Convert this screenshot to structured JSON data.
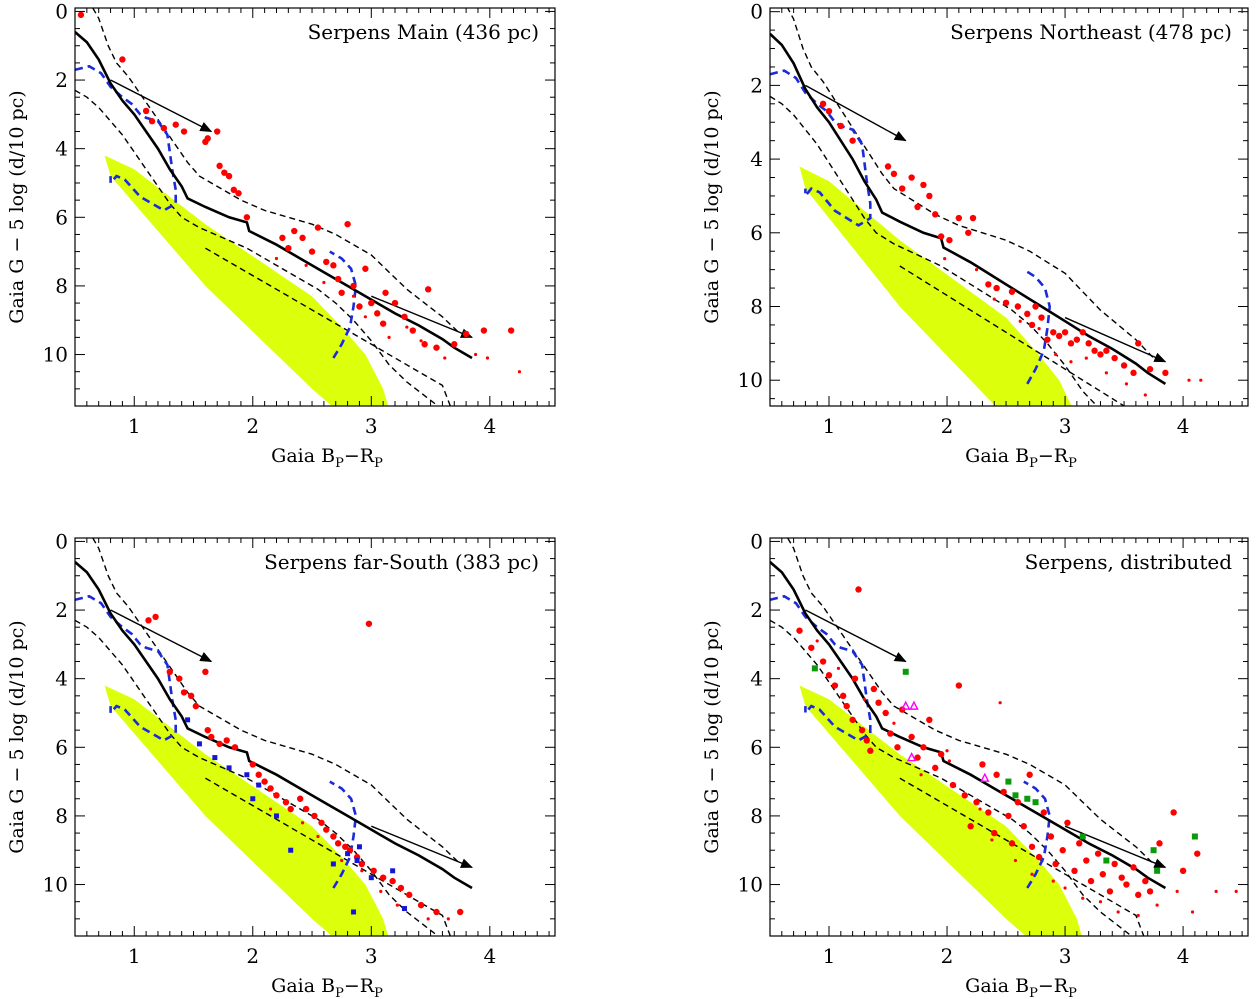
{
  "figure": {
    "xlabel": "Gaia B",
    "xlabel_sub1": "P",
    "xlabel_mid": "−R",
    "xlabel_sub2": "P",
    "ylabel": "Gaia G − 5 log (d/10 pc)",
    "colors": {
      "members": "#ff0000",
      "blue_squares": "#1515d8",
      "green_squares": "#0a9a0a",
      "magenta_triangles": "#ff00ff",
      "main_sequence_band": "#dcff0c",
      "isochrone_blue": "#1b2bd9",
      "isochrone_black": "#000000"
    }
  },
  "chart_data": [
    {
      "type": "scatter",
      "title": "Serpens Main (436 pc)",
      "xlim": [
        0.5,
        4.55
      ],
      "ylim": [
        11.5,
        -0.1
      ],
      "xticks": [
        "1",
        "2",
        "3",
        "4"
      ],
      "yticks": [
        "0",
        "2",
        "4",
        "6",
        "8",
        "10"
      ],
      "members_large": [
        [
          0.55,
          0.1
        ],
        [
          0.9,
          1.4
        ],
        [
          1.1,
          2.9
        ],
        [
          1.15,
          3.2
        ],
        [
          1.25,
          3.4
        ],
        [
          1.35,
          3.3
        ],
        [
          1.42,
          3.5
        ],
        [
          1.6,
          3.8
        ],
        [
          1.62,
          3.7
        ],
        [
          1.7,
          3.5
        ],
        [
          1.72,
          4.5
        ],
        [
          1.76,
          4.7
        ],
        [
          1.8,
          4.8
        ],
        [
          1.84,
          5.2
        ],
        [
          1.88,
          5.3
        ],
        [
          1.95,
          6.0
        ],
        [
          2.25,
          6.6
        ],
        [
          2.3,
          6.9
        ],
        [
          2.35,
          6.4
        ],
        [
          2.42,
          6.6
        ],
        [
          2.5,
          7.0
        ],
        [
          2.55,
          6.3
        ],
        [
          2.62,
          7.3
        ],
        [
          2.68,
          7.4
        ],
        [
          2.72,
          7.8
        ],
        [
          2.75,
          8.2
        ],
        [
          2.8,
          6.2
        ],
        [
          2.85,
          8.0
        ],
        [
          2.9,
          8.6
        ],
        [
          2.95,
          7.5
        ],
        [
          3.0,
          8.5
        ],
        [
          3.05,
          8.8
        ],
        [
          3.1,
          9.1
        ],
        [
          3.12,
          8.2
        ],
        [
          3.2,
          8.5
        ],
        [
          3.28,
          8.9
        ],
        [
          3.35,
          9.3
        ],
        [
          3.45,
          9.7
        ],
        [
          3.48,
          8.1
        ],
        [
          3.55,
          9.8
        ],
        [
          3.7,
          9.7
        ],
        [
          3.8,
          9.4
        ],
        [
          3.95,
          9.3
        ],
        [
          4.18,
          9.3
        ]
      ],
      "members_small": [
        [
          2.2,
          7.2
        ],
        [
          2.45,
          7.4
        ],
        [
          2.6,
          7.9
        ],
        [
          2.85,
          8.3
        ],
        [
          2.95,
          8.9
        ],
        [
          3.15,
          9.5
        ],
        [
          3.3,
          9.2
        ],
        [
          3.42,
          9.6
        ],
        [
          3.62,
          10.1
        ],
        [
          3.88,
          10.0
        ],
        [
          3.98,
          10.1
        ],
        [
          4.25,
          10.5
        ]
      ],
      "blue_squares": [],
      "green_squares": [],
      "magenta_triangles": []
    },
    {
      "type": "scatter",
      "title": "Serpens Northeast (478 pc)",
      "xlim": [
        0.5,
        4.55
      ],
      "ylim": [
        10.7,
        -0.1
      ],
      "xticks": [
        "1",
        "2",
        "3",
        "4"
      ],
      "yticks": [
        "0",
        "2",
        "4",
        "6",
        "8",
        "10"
      ],
      "members_large": [
        [
          0.95,
          2.5
        ],
        [
          1.0,
          2.7
        ],
        [
          1.1,
          3.1
        ],
        [
          1.2,
          3.5
        ],
        [
          1.5,
          4.2
        ],
        [
          1.55,
          4.4
        ],
        [
          1.62,
          4.8
        ],
        [
          1.7,
          4.5
        ],
        [
          1.75,
          5.3
        ],
        [
          1.8,
          4.7
        ],
        [
          1.85,
          5.0
        ],
        [
          1.9,
          5.5
        ],
        [
          1.95,
          6.1
        ],
        [
          2.02,
          6.2
        ],
        [
          2.1,
          5.6
        ],
        [
          2.18,
          6.0
        ],
        [
          2.22,
          5.6
        ],
        [
          2.35,
          7.4
        ],
        [
          2.42,
          7.5
        ],
        [
          2.5,
          7.9
        ],
        [
          2.55,
          7.6
        ],
        [
          2.6,
          8.0
        ],
        [
          2.68,
          8.2
        ],
        [
          2.72,
          8.5
        ],
        [
          2.75,
          8.0
        ],
        [
          2.8,
          8.3
        ],
        [
          2.85,
          8.9
        ],
        [
          2.9,
          8.7
        ],
        [
          2.95,
          8.8
        ],
        [
          3.0,
          8.7
        ],
        [
          3.05,
          9.0
        ],
        [
          3.1,
          8.9
        ],
        [
          3.15,
          8.7
        ],
        [
          3.2,
          9.0
        ],
        [
          3.25,
          9.2
        ],
        [
          3.3,
          9.3
        ],
        [
          3.35,
          9.2
        ],
        [
          3.42,
          9.4
        ],
        [
          3.5,
          9.6
        ],
        [
          3.58,
          9.8
        ],
        [
          3.62,
          9.0
        ],
        [
          3.72,
          9.7
        ],
        [
          3.85,
          9.8
        ]
      ],
      "members_small": [
        [
          1.98,
          6.7
        ],
        [
          2.25,
          7.0
        ],
        [
          2.4,
          7.8
        ],
        [
          2.62,
          8.4
        ],
        [
          2.78,
          8.6
        ],
        [
          2.92,
          9.3
        ],
        [
          3.05,
          9.5
        ],
        [
          3.18,
          9.4
        ],
        [
          3.35,
          9.8
        ],
        [
          3.52,
          10.1
        ],
        [
          3.68,
          10.4
        ],
        [
          4.05,
          10.0
        ],
        [
          4.15,
          10.0
        ]
      ],
      "blue_squares": [],
      "green_squares": [],
      "magenta_triangles": []
    },
    {
      "type": "scatter",
      "title": "Serpens far-South (383 pc)",
      "xlim": [
        0.5,
        4.55
      ],
      "ylim": [
        11.5,
        -0.1
      ],
      "xticks": [
        "1",
        "2",
        "3",
        "4"
      ],
      "yticks": [
        "0",
        "2",
        "4",
        "6",
        "8",
        "10"
      ],
      "members_large": [
        [
          1.12,
          2.3
        ],
        [
          1.18,
          2.2
        ],
        [
          1.3,
          3.8
        ],
        [
          1.38,
          4.0
        ],
        [
          1.42,
          4.4
        ],
        [
          1.48,
          4.5
        ],
        [
          1.52,
          4.8
        ],
        [
          1.6,
          3.8
        ],
        [
          1.62,
          5.5
        ],
        [
          1.65,
          5.7
        ],
        [
          1.72,
          5.9
        ],
        [
          1.78,
          5.8
        ],
        [
          1.85,
          6.0
        ],
        [
          2.0,
          6.5
        ],
        [
          2.05,
          6.8
        ],
        [
          2.1,
          7.0
        ],
        [
          2.15,
          7.2
        ],
        [
          2.2,
          7.4
        ],
        [
          2.28,
          7.6
        ],
        [
          2.32,
          7.8
        ],
        [
          2.4,
          7.5
        ],
        [
          2.45,
          7.8
        ],
        [
          2.52,
          8.0
        ],
        [
          2.58,
          8.2
        ],
        [
          2.62,
          8.4
        ],
        [
          2.68,
          8.6
        ],
        [
          2.72,
          8.8
        ],
        [
          2.78,
          8.9
        ],
        [
          2.82,
          9.0
        ],
        [
          2.88,
          9.2
        ],
        [
          2.92,
          9.4
        ],
        [
          2.98,
          2.4
        ],
        [
          3.02,
          9.6
        ],
        [
          3.1,
          9.8
        ],
        [
          3.18,
          9.9
        ],
        [
          3.25,
          10.1
        ],
        [
          3.32,
          10.3
        ],
        [
          3.42,
          10.6
        ],
        [
          3.55,
          10.8
        ],
        [
          3.75,
          10.8
        ]
      ],
      "members_small": [
        [
          2.15,
          7.8
        ],
        [
          2.42,
          8.2
        ],
        [
          2.55,
          8.6
        ],
        [
          2.75,
          9.3
        ],
        [
          2.92,
          9.6
        ],
        [
          3.08,
          10.2
        ],
        [
          3.22,
          10.6
        ],
        [
          3.48,
          11.0
        ],
        [
          3.65,
          11.0
        ]
      ],
      "blue_squares": [
        [
          1.45,
          5.2
        ],
        [
          1.55,
          5.9
        ],
        [
          1.68,
          6.3
        ],
        [
          1.8,
          6.6
        ],
        [
          1.95,
          6.8
        ],
        [
          2.05,
          7.1
        ],
        [
          2.0,
          7.5
        ],
        [
          2.2,
          8.0
        ],
        [
          2.32,
          9.0
        ],
        [
          2.68,
          9.4
        ],
        [
          2.8,
          9.1
        ],
        [
          2.88,
          9.3
        ],
        [
          2.9,
          8.9
        ],
        [
          3.0,
          9.8
        ],
        [
          3.18,
          9.6
        ],
        [
          3.28,
          10.7
        ],
        [
          2.85,
          10.8
        ]
      ],
      "green_squares": [],
      "magenta_triangles": []
    },
    {
      "type": "scatter",
      "title": "Serpens, distributed",
      "xlim": [
        0.5,
        4.55
      ],
      "ylim": [
        11.5,
        -0.1
      ],
      "xticks": [
        "1",
        "2",
        "3",
        "4"
      ],
      "yticks": [
        "0",
        "2",
        "4",
        "6",
        "8",
        "10"
      ],
      "members_large": [
        [
          0.75,
          2.6
        ],
        [
          0.85,
          3.1
        ],
        [
          0.95,
          3.5
        ],
        [
          1.0,
          3.9
        ],
        [
          1.05,
          4.2
        ],
        [
          1.12,
          4.5
        ],
        [
          1.15,
          4.8
        ],
        [
          1.2,
          5.2
        ],
        [
          1.22,
          4.0
        ],
        [
          1.25,
          1.4
        ],
        [
          1.28,
          5.5
        ],
        [
          1.32,
          5.8
        ],
        [
          1.35,
          6.1
        ],
        [
          1.38,
          4.3
        ],
        [
          1.42,
          4.7
        ],
        [
          1.48,
          5.0
        ],
        [
          1.52,
          5.6
        ],
        [
          1.58,
          6.0
        ],
        [
          1.62,
          4.9
        ],
        [
          1.7,
          5.7
        ],
        [
          1.75,
          6.3
        ],
        [
          1.8,
          6.0
        ],
        [
          1.85,
          5.2
        ],
        [
          1.9,
          6.6
        ],
        [
          1.95,
          6.2
        ],
        [
          2.05,
          7.1
        ],
        [
          2.1,
          4.2
        ],
        [
          2.15,
          7.4
        ],
        [
          2.2,
          8.3
        ],
        [
          2.25,
          7.6
        ],
        [
          2.3,
          6.5
        ],
        [
          2.35,
          7.9
        ],
        [
          2.4,
          8.5
        ],
        [
          2.42,
          6.8
        ],
        [
          2.48,
          7.3
        ],
        [
          2.52,
          8.0
        ],
        [
          2.55,
          8.8
        ],
        [
          2.6,
          7.6
        ],
        [
          2.65,
          8.3
        ],
        [
          2.7,
          6.8
        ],
        [
          2.72,
          8.9
        ],
        [
          2.78,
          9.2
        ],
        [
          2.82,
          7.9
        ],
        [
          2.88,
          8.6
        ],
        [
          2.92,
          9.4
        ],
        [
          2.98,
          9.0
        ],
        [
          3.02,
          8.2
        ],
        [
          3.08,
          9.6
        ],
        [
          3.12,
          8.8
        ],
        [
          3.18,
          9.3
        ],
        [
          3.22,
          9.9
        ],
        [
          3.28,
          9.1
        ],
        [
          3.32,
          9.7
        ],
        [
          3.38,
          10.2
        ],
        [
          3.42,
          9.4
        ],
        [
          3.48,
          9.8
        ],
        [
          3.52,
          10.0
        ],
        [
          3.58,
          9.5
        ],
        [
          3.62,
          10.3
        ],
        [
          3.68,
          9.9
        ],
        [
          3.72,
          10.2
        ],
        [
          3.8,
          8.8
        ],
        [
          3.92,
          7.9
        ],
        [
          4.0,
          9.6
        ],
        [
          4.12,
          9.1
        ]
      ],
      "members_small": [
        [
          0.9,
          2.9
        ],
        [
          1.08,
          3.7
        ],
        [
          1.3,
          4.6
        ],
        [
          1.55,
          5.3
        ],
        [
          1.78,
          6.8
        ],
        [
          2.02,
          6.4
        ],
        [
          2.28,
          7.8
        ],
        [
          2.38,
          8.7
        ],
        [
          2.58,
          9.3
        ],
        [
          2.72,
          9.7
        ],
        [
          2.9,
          9.9
        ],
        [
          3.0,
          10.1
        ],
        [
          3.15,
          10.4
        ],
        [
          3.3,
          10.5
        ],
        [
          3.45,
          10.8
        ],
        [
          3.62,
          10.9
        ],
        [
          3.78,
          10.6
        ],
        [
          3.95,
          10.2
        ],
        [
          4.08,
          10.8
        ],
        [
          4.28,
          10.2
        ],
        [
          4.45,
          10.2
        ],
        [
          2.45,
          4.7
        ],
        [
          2.0,
          6.1
        ]
      ],
      "blue_squares": [],
      "green_squares": [
        [
          0.88,
          3.7
        ],
        [
          1.65,
          3.8
        ],
        [
          2.52,
          7.0
        ],
        [
          2.58,
          7.4
        ],
        [
          2.68,
          7.5
        ],
        [
          2.75,
          7.6
        ],
        [
          3.15,
          8.6
        ],
        [
          3.35,
          9.3
        ],
        [
          3.75,
          9.0
        ],
        [
          3.78,
          9.6
        ],
        [
          4.1,
          8.6
        ]
      ],
      "magenta_triangles": [
        [
          1.65,
          4.8
        ],
        [
          1.72,
          4.8
        ],
        [
          1.7,
          6.3
        ],
        [
          2.32,
          6.9
        ]
      ]
    }
  ]
}
